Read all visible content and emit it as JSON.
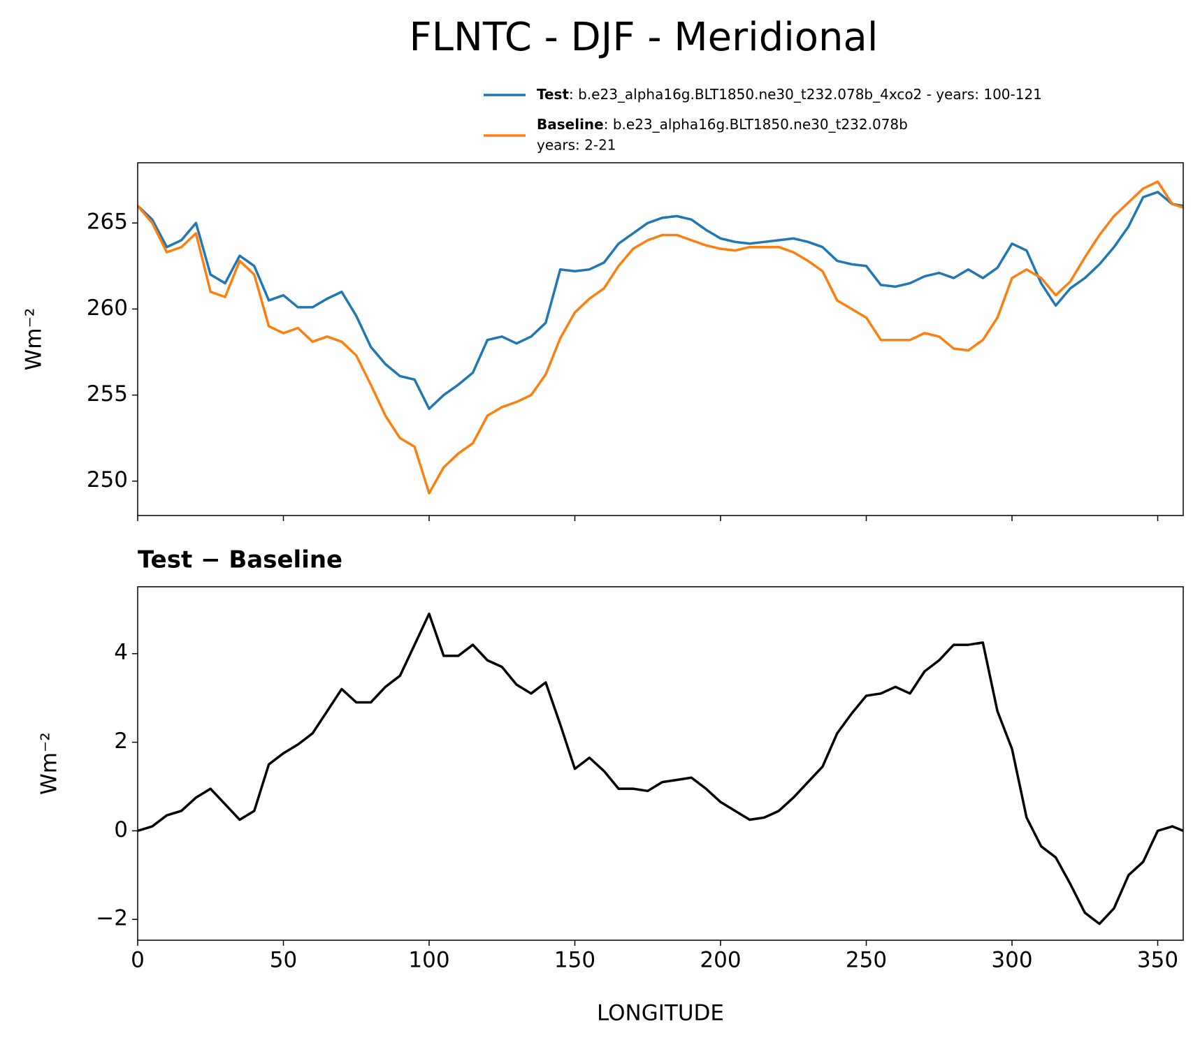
{
  "chart_data": [
    {
      "type": "line",
      "title": "FLNTC - DJF - Meridional",
      "ylabel": "Wm⁻²",
      "x": [
        0,
        5,
        10,
        15,
        20,
        25,
        30,
        35,
        40,
        45,
        50,
        55,
        60,
        65,
        70,
        75,
        80,
        85,
        90,
        95,
        100,
        105,
        110,
        115,
        120,
        125,
        130,
        135,
        140,
        145,
        150,
        155,
        160,
        165,
        170,
        175,
        180,
        185,
        190,
        195,
        200,
        205,
        210,
        215,
        220,
        225,
        230,
        235,
        240,
        245,
        250,
        255,
        260,
        265,
        270,
        275,
        280,
        285,
        290,
        295,
        300,
        305,
        310,
        315,
        320,
        325,
        330,
        335,
        340,
        345,
        350,
        355,
        358.75
      ],
      "series": [
        {
          "name": "Test",
          "description": ": b.e23_alpha16g.BLT1850.ne30_t232.078b_4xco2 - years: 100-121",
          "color": "#1f77b4",
          "values": [
            266.0,
            265.2,
            263.6,
            264.0,
            265.0,
            262.0,
            261.5,
            263.1,
            262.5,
            260.5,
            260.8,
            260.1,
            260.1,
            260.6,
            261.0,
            259.6,
            257.8,
            256.8,
            256.1,
            255.9,
            254.2,
            255.0,
            255.6,
            256.3,
            258.2,
            258.4,
            258.0,
            258.4,
            259.2,
            262.3,
            262.2,
            262.3,
            262.7,
            263.8,
            264.4,
            265.0,
            265.3,
            265.4,
            265.2,
            264.6,
            264.1,
            263.9,
            263.8,
            263.9,
            264.0,
            264.1,
            263.9,
            263.6,
            262.8,
            262.6,
            262.5,
            261.4,
            261.3,
            261.5,
            261.9,
            262.1,
            261.8,
            262.3,
            261.8,
            262.4,
            263.8,
            263.4,
            261.5,
            260.2,
            261.2,
            261.8,
            262.6,
            263.6,
            264.8,
            266.5,
            266.8,
            266.1,
            266.0
          ]
        },
        {
          "name": "Baseline",
          "description": [
            ": b.e23_alpha16g.BLT1850.ne30_t232.078b",
            "years: 2-21"
          ],
          "color": "#ff7f0e",
          "values": [
            266.0,
            265.0,
            263.3,
            263.6,
            264.4,
            261.0,
            260.7,
            262.8,
            262.0,
            259.0,
            258.6,
            258.9,
            258.1,
            258.4,
            258.1,
            257.3,
            255.6,
            253.8,
            252.5,
            252.0,
            249.3,
            250.8,
            251.6,
            252.2,
            253.8,
            254.3,
            254.6,
            255.0,
            256.2,
            258.3,
            259.8,
            260.6,
            261.2,
            262.5,
            263.5,
            264.0,
            264.3,
            264.3,
            264.0,
            263.7,
            263.5,
            263.4,
            263.6,
            263.6,
            263.6,
            263.3,
            262.8,
            262.2,
            260.5,
            260.0,
            259.5,
            258.2,
            258.2,
            258.2,
            258.6,
            258.4,
            257.7,
            257.6,
            258.2,
            259.5,
            261.8,
            262.3,
            261.8,
            260.8,
            261.6,
            263.0,
            264.3,
            265.4,
            266.2,
            267.0,
            267.4,
            266.1,
            265.9
          ]
        }
      ],
      "xlim": [
        0,
        358.75
      ],
      "xticks": [
        0,
        50,
        100,
        150,
        200,
        250,
        300,
        350
      ],
      "ylim": [
        248.0,
        268.5
      ],
      "yticks": [
        250,
        255,
        260,
        265
      ]
    },
    {
      "type": "line",
      "title": "Test − Baseline",
      "ylabel": "Wm⁻²",
      "xlabel": "LONGITUDE",
      "x": [
        0,
        5,
        10,
        15,
        20,
        25,
        30,
        35,
        40,
        45,
        50,
        55,
        60,
        65,
        70,
        75,
        80,
        85,
        90,
        95,
        100,
        105,
        110,
        115,
        120,
        125,
        130,
        135,
        140,
        145,
        150,
        155,
        160,
        165,
        170,
        175,
        180,
        185,
        190,
        195,
        200,
        205,
        210,
        215,
        220,
        225,
        230,
        235,
        240,
        245,
        250,
        255,
        260,
        265,
        270,
        275,
        280,
        285,
        290,
        295,
        300,
        305,
        310,
        315,
        320,
        325,
        330,
        335,
        340,
        345,
        350,
        355,
        358.75
      ],
      "series": [
        {
          "color": "#000000",
          "values": [
            0,
            0.1,
            0.35,
            0.45,
            0.75,
            0.95,
            0.6,
            0.25,
            0.45,
            1.5,
            1.75,
            1.95,
            2.2,
            2.7,
            3.2,
            2.9,
            2.9,
            3.25,
            3.5,
            4.2,
            4.9,
            3.95,
            3.95,
            4.2,
            3.85,
            3.7,
            3.3,
            3.1,
            3.35,
            2.4,
            1.4,
            1.65,
            1.35,
            0.95,
            0.95,
            0.9,
            1.1,
            1.15,
            1.2,
            0.95,
            0.65,
            0.45,
            0.25,
            0.3,
            0.45,
            0.75,
            1.1,
            1.45,
            2.2,
            2.65,
            3.05,
            3.1,
            3.25,
            3.1,
            3.6,
            3.85,
            4.2,
            4.2,
            4.25,
            2.7,
            1.85,
            0.3,
            -0.35,
            -0.6,
            -1.2,
            -1.85,
            -2.1,
            -1.75,
            -1.0,
            -0.7,
            0.0,
            0.1,
            0.0
          ]
        }
      ],
      "xlim": [
        0,
        358.75
      ],
      "xticks": [
        0,
        50,
        100,
        150,
        200,
        250,
        300,
        350
      ],
      "ylim": [
        -2.47,
        5.51
      ],
      "yticks": [
        {
          "value": -2,
          "label": "−2"
        },
        0,
        2,
        4
      ]
    }
  ]
}
